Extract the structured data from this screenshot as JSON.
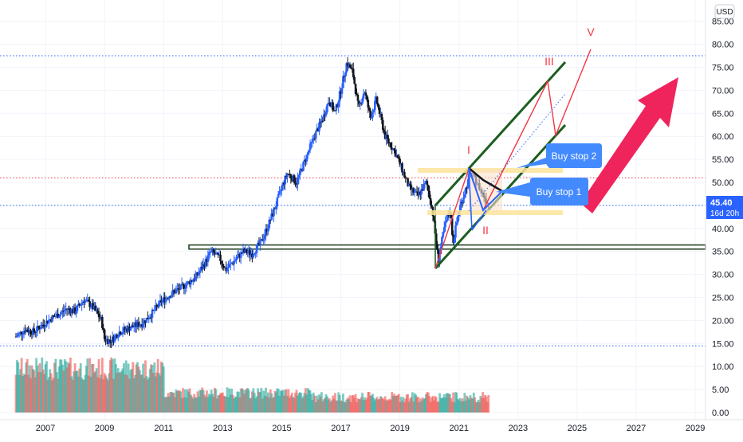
{
  "currency_label": "USD",
  "price_badge": {
    "price": "45.40",
    "countdown": "16d 20h"
  },
  "chart_data": {
    "type": "candlestick",
    "price_axis": {
      "min": 0,
      "max": 85,
      "ticks": [
        "0.00",
        "5.00",
        "10.00",
        "15.00",
        "20.00",
        "25.00",
        "30.00",
        "35.00",
        "40.00",
        "45.00",
        "50.00",
        "55.00",
        "60.00",
        "65.00",
        "70.00",
        "75.00",
        "80.00",
        "85.00"
      ]
    },
    "time_axis": {
      "range": [
        2006.0,
        2029.0
      ],
      "ticks": [
        "2007",
        "2009",
        "2011",
        "2013",
        "2015",
        "2017",
        "2019",
        "2021",
        "2023",
        "2025",
        "2027",
        "2029"
      ]
    },
    "last_price": 45.4,
    "price_path": [
      [
        2006.0,
        16.5
      ],
      [
        2006.3,
        18.0
      ],
      [
        2006.6,
        17.5
      ],
      [
        2006.9,
        19.0
      ],
      [
        2007.2,
        20.5
      ],
      [
        2007.5,
        21.5
      ],
      [
        2007.7,
        22.5
      ],
      [
        2008.0,
        22.0
      ],
      [
        2008.3,
        24.5
      ],
      [
        2008.6,
        23.0
      ],
      [
        2008.9,
        20.0
      ],
      [
        2009.0,
        16.0
      ],
      [
        2009.2,
        15.5
      ],
      [
        2009.5,
        17.5
      ],
      [
        2009.9,
        18.5
      ],
      [
        2010.3,
        19.5
      ],
      [
        2010.6,
        21.5
      ],
      [
        2010.9,
        24.0
      ],
      [
        2011.3,
        26.0
      ],
      [
        2011.7,
        27.5
      ],
      [
        2012.1,
        29.5
      ],
      [
        2012.4,
        32.5
      ],
      [
        2012.6,
        35.0
      ],
      [
        2012.9,
        33.5
      ],
      [
        2013.1,
        31.0
      ],
      [
        2013.4,
        33.0
      ],
      [
        2013.7,
        35.0
      ],
      [
        2014.0,
        34.5
      ],
      [
        2014.3,
        37.0
      ],
      [
        2014.5,
        40.0
      ],
      [
        2014.8,
        45.0
      ],
      [
        2015.0,
        49.0
      ],
      [
        2015.2,
        52.0
      ],
      [
        2015.5,
        50.0
      ],
      [
        2015.8,
        55.0
      ],
      [
        2016.1,
        60.0
      ],
      [
        2016.4,
        64.0
      ],
      [
        2016.6,
        68.0
      ],
      [
        2016.8,
        65.0
      ],
      [
        2017.0,
        70.0
      ],
      [
        2017.2,
        76.0
      ],
      [
        2017.4,
        74.0
      ],
      [
        2017.6,
        66.0
      ],
      [
        2017.8,
        70.0
      ],
      [
        2018.0,
        64.0
      ],
      [
        2018.2,
        68.0
      ],
      [
        2018.5,
        60.0
      ],
      [
        2018.8,
        57.0
      ],
      [
        2019.0,
        54.0
      ],
      [
        2019.3,
        49.0
      ],
      [
        2019.6,
        47.0
      ],
      [
        2019.9,
        50.0
      ],
      [
        2020.1,
        44.0
      ],
      [
        2020.3,
        33.0
      ],
      [
        2020.5,
        40.0
      ],
      [
        2020.7,
        44.0
      ],
      [
        2020.8,
        37.0
      ],
      [
        2021.0,
        44.0
      ],
      [
        2021.2,
        48.0
      ],
      [
        2021.4,
        52.0
      ],
      [
        2021.6,
        50.0
      ],
      [
        2021.8,
        47.5
      ],
      [
        2022.0,
        45.4
      ]
    ],
    "volume_axis_max": 15,
    "volume_colors": {
      "up": "#26a69a",
      "down": "#ef5350"
    },
    "levels": {
      "dotted_blue": [
        77.5,
        45.0,
        14.5
      ],
      "dotted_red": [
        51.0
      ],
      "support_band": [
        35.5,
        36.4
      ]
    },
    "wave_labels": [
      "I",
      "II",
      "III",
      "V"
    ],
    "annotations": [
      "Buy stop 2",
      "Buy stop 1"
    ],
    "colors": {
      "bull": "#2962ff",
      "bear": "#131722",
      "channel": "#1b5e20",
      "projection": "#f23645",
      "arrow": "#f0245c",
      "callout": "#448aff",
      "zone": "#fde39a"
    }
  }
}
